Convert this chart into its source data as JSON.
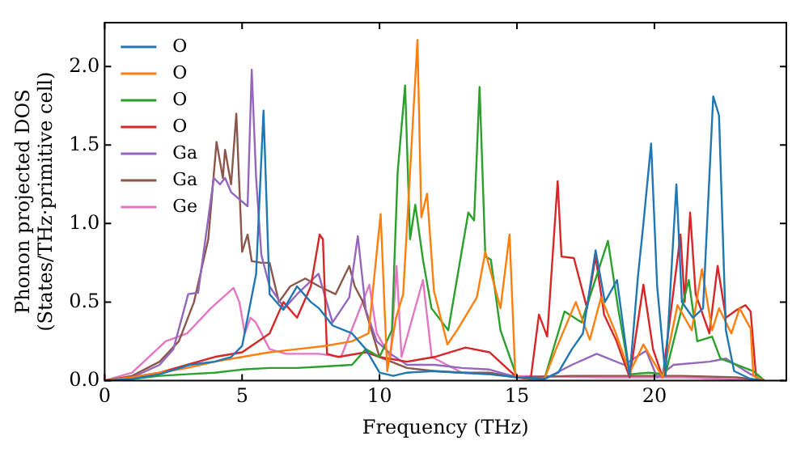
{
  "chart_data": {
    "type": "line",
    "xlabel": "Frequency (THz)",
    "ylabel": "Phonon projected DOS\n(States/THz·primitive cell)",
    "xlim": [
      0,
      24.8
    ],
    "xticks": [
      0,
      5,
      10,
      15,
      20
    ],
    "ylim": [
      0,
      2.28
    ],
    "yticks": [
      {
        "value": 0,
        "label": "0.0"
      },
      {
        "value": 0.5,
        "label": "0.5"
      },
      {
        "value": 1,
        "label": "1.0"
      },
      {
        "value": 1.5,
        "label": "1.5"
      },
      {
        "value": 2,
        "label": "2.0"
      }
    ],
    "grid": false,
    "legend": "top left",
    "marker": "none",
    "line_style": "solid",
    "series": [
      {
        "name": "O",
        "color": "#1f77b4",
        "x": [
          0,
          1,
          2,
          3.1,
          4,
          4.6,
          5,
          5.51,
          5.78,
          6,
          6.5,
          7,
          7.5,
          7.8,
          8.3,
          9,
          9.5,
          10,
          10.5,
          11,
          12,
          13,
          14,
          15,
          16,
          16.5,
          17,
          17.4,
          17.86,
          18.2,
          18.64,
          19.1,
          19.4,
          19.6,
          19.88,
          20.1,
          20.4,
          20.8,
          21,
          21.4,
          21.77,
          22.14,
          22.35,
          22.6,
          22.9,
          23.5,
          24
        ],
        "values": [
          0,
          0.01,
          0.04,
          0.1,
          0.12,
          0.15,
          0.22,
          0.68,
          1.72,
          0.55,
          0.45,
          0.6,
          0.5,
          0.46,
          0.35,
          0.3,
          0.2,
          0.05,
          0.03,
          0.05,
          0.06,
          0.05,
          0.04,
          0.02,
          0.01,
          0.05,
          0.2,
          0.3,
          0.83,
          0.5,
          0.64,
          0.03,
          0.66,
          1.0,
          1.51,
          0.6,
          0.03,
          1.25,
          0.5,
          0.4,
          0.46,
          1.81,
          1.69,
          0.32,
          0.06,
          0.01,
          0
        ]
      },
      {
        "name": "O",
        "color": "#ff7f0e",
        "x": [
          0,
          1,
          2,
          3,
          4,
          5,
          6,
          7,
          8,
          9,
          9.6,
          10.04,
          10.28,
          10.6,
          10.86,
          11.38,
          11.52,
          11.73,
          11.98,
          12.47,
          12.82,
          13.54,
          13.85,
          14.4,
          14.73,
          14.94,
          15.5,
          16.0,
          16.42,
          17.14,
          17.65,
          18.06,
          18.6,
          19.1,
          19.6,
          20.3,
          20.84,
          21.36,
          21.73,
          22.1,
          22.35,
          22.8,
          23.1,
          23.5,
          23.6,
          24
        ],
        "values": [
          0,
          0.02,
          0.05,
          0.08,
          0.12,
          0.15,
          0.18,
          0.2,
          0.22,
          0.25,
          0.3,
          1.06,
          0.06,
          0.4,
          0.55,
          2.17,
          1.04,
          1.19,
          0.57,
          0.23,
          0.32,
          0.53,
          0.82,
          0.46,
          0.93,
          0.03,
          0.01,
          0.01,
          0.2,
          0.5,
          0.26,
          0.53,
          0.3,
          0.05,
          0.23,
          0.02,
          0.48,
          0.32,
          0.71,
          0.32,
          0.46,
          0.3,
          0.46,
          0.33,
          0.03,
          0
        ]
      },
      {
        "name": "O",
        "color": "#2ca02c",
        "x": [
          0,
          1,
          2,
          3,
          4,
          5,
          6,
          7,
          8,
          9,
          9.5,
          10,
          10.45,
          10.66,
          10.93,
          11.11,
          11.3,
          11.58,
          11.89,
          12.5,
          13.23,
          13.44,
          13.64,
          13.85,
          14.05,
          14.4,
          15,
          16,
          16.73,
          17.35,
          18.31,
          18.68,
          19.1,
          19.8,
          20.4,
          21.25,
          21.56,
          22.1,
          22.4,
          23.6,
          24
        ],
        "values": [
          0,
          0.01,
          0.03,
          0.04,
          0.05,
          0.07,
          0.08,
          0.08,
          0.09,
          0.1,
          0.2,
          0.15,
          0.32,
          1.33,
          1.88,
          0.9,
          1.12,
          0.77,
          0.46,
          0.32,
          1.07,
          1.02,
          1.87,
          0.79,
          0.77,
          0.32,
          0.02,
          0.01,
          0.44,
          0.37,
          0.89,
          0.46,
          0.04,
          0.05,
          0.04,
          0.64,
          0.25,
          0.28,
          0.14,
          0.06,
          0
        ]
      },
      {
        "name": "O",
        "color": "#d62728",
        "x": [
          0,
          1,
          2,
          3,
          4,
          5,
          6,
          6.5,
          7,
          7.5,
          7.82,
          7.94,
          8.09,
          8.5,
          9.5,
          10,
          11,
          12,
          13.13,
          14,
          15,
          15.5,
          15.8,
          16.1,
          16.48,
          16.62,
          17.07,
          17.55,
          17.86,
          18.17,
          18.6,
          19.1,
          19.6,
          19.95,
          20.3,
          20.95,
          21.1,
          21.3,
          21.5,
          22,
          22.3,
          22.6,
          23,
          23.31,
          23.5,
          23.7,
          24
        ],
        "values": [
          0,
          0.02,
          0.05,
          0.1,
          0.15,
          0.18,
          0.3,
          0.5,
          0.4,
          0.6,
          0.93,
          0.9,
          0.17,
          0.15,
          0.18,
          0.15,
          0.12,
          0.15,
          0.21,
          0.18,
          0.02,
          0.01,
          0.42,
          0.28,
          1.27,
          0.79,
          0.78,
          0.46,
          0.79,
          0.42,
          0.26,
          0.02,
          0.61,
          0.2,
          0.02,
          0.93,
          0.5,
          1.07,
          0.55,
          0.3,
          0.73,
          0.4,
          0.45,
          0.48,
          0.44,
          0.02,
          0
        ]
      },
      {
        "name": "Ga",
        "color": "#9467bd",
        "x": [
          0,
          1,
          2,
          2.5,
          3.04,
          3.4,
          3.97,
          4.2,
          4.38,
          4.6,
          5.2,
          5.35,
          5.51,
          5.7,
          6,
          6.54,
          7,
          7.78,
          8.29,
          8.9,
          9.21,
          9.5,
          9.9,
          10.4,
          11,
          12,
          13,
          14,
          15,
          16,
          17,
          17.9,
          18.9,
          19.7,
          20.1,
          20.7,
          22,
          22.6,
          23.5,
          24
        ],
        "values": [
          0,
          0.02,
          0.1,
          0.2,
          0.55,
          0.56,
          1.29,
          1.25,
          1.29,
          1.2,
          1.11,
          1.98,
          1.29,
          0.8,
          0.6,
          0.46,
          0.55,
          0.68,
          0.37,
          0.53,
          0.92,
          0.45,
          0.25,
          0.17,
          0.1,
          0.1,
          0.08,
          0.07,
          0.02,
          0.01,
          0.1,
          0.17,
          0.1,
          0.19,
          0.02,
          0.1,
          0.12,
          0.14,
          0.04,
          0
        ]
      },
      {
        "name": "Ga",
        "color": "#8c564b",
        "x": [
          0,
          1,
          2,
          2.7,
          3.25,
          3.77,
          4.07,
          4.3,
          4.38,
          4.6,
          4.79,
          5,
          5.2,
          5.35,
          5.72,
          6,
          6.34,
          6.75,
          7.3,
          7.8,
          8.4,
          8.9,
          9.1,
          9.4,
          10,
          11,
          12,
          13,
          14,
          15,
          17,
          19,
          21,
          23,
          24
        ],
        "values": [
          0,
          0.03,
          0.12,
          0.25,
          0.5,
          0.9,
          1.52,
          1.29,
          1.47,
          1.25,
          1.7,
          0.82,
          0.93,
          0.76,
          0.75,
          0.75,
          0.5,
          0.6,
          0.65,
          0.6,
          0.55,
          0.73,
          0.6,
          0.5,
          0.15,
          0.08,
          0.06,
          0.05,
          0.05,
          0.02,
          0.03,
          0.03,
          0.03,
          0.02,
          0
        ]
      },
      {
        "name": "Ge",
        "color": "#e377c2",
        "x": [
          0,
          1,
          2.22,
          3,
          3.86,
          4.69,
          4.9,
          5.1,
          5.3,
          5.5,
          6,
          6.6,
          7.8,
          8.6,
          9.63,
          9.9,
          10.4,
          10.62,
          10.8,
          11.58,
          11.9,
          13,
          15,
          18,
          21,
          24
        ],
        "values": [
          0,
          0.05,
          0.25,
          0.3,
          0.46,
          0.59,
          0.5,
          0.3,
          0.4,
          0.37,
          0.2,
          0.17,
          0.17,
          0.15,
          0.61,
          0.3,
          0.15,
          0.73,
          0.15,
          0.64,
          0.15,
          0.05,
          0.03,
          0.02,
          0.02,
          0
        ]
      }
    ]
  }
}
